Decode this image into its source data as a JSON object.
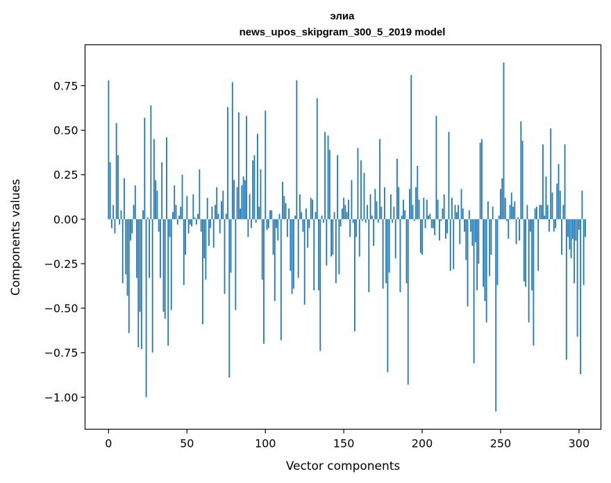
{
  "chart_data": {
    "type": "bar",
    "title": "элиа",
    "subtitle": "news_upos_skipgram_300_5_2019 model",
    "xlabel": "Vector components",
    "ylabel": "Components values",
    "xlim": [
      -15,
      314
    ],
    "ylim": [
      -1.18,
      0.98
    ],
    "xticks": [
      0,
      50,
      100,
      150,
      200,
      250,
      300
    ],
    "xtick_labels": [
      "0",
      "50",
      "100",
      "150",
      "200",
      "250",
      "300"
    ],
    "yticks": [
      -1.0,
      -0.75,
      -0.5,
      -0.25,
      0.0,
      0.25,
      0.5,
      0.75
    ],
    "ytick_labels": [
      "−1.00",
      "−0.75",
      "−0.50",
      "−0.25",
      "0.00",
      "0.25",
      "0.50",
      "0.75"
    ],
    "bar_color": "#1f77b4",
    "grid": false,
    "values": [
      0.78,
      0.32,
      -0.05,
      0.08,
      -0.08,
      0.54,
      0.36,
      -0.03,
      0.05,
      -0.36,
      0.23,
      -0.31,
      -0.43,
      -0.64,
      -0.12,
      -0.08,
      0.08,
      0.19,
      -0.33,
      -0.72,
      -0.52,
      -0.73,
      0.05,
      0.57,
      -1.0,
      0.01,
      -0.33,
      0.64,
      -0.75,
      0.45,
      0.22,
      0.16,
      -0.07,
      -0.33,
      0.32,
      -0.52,
      -0.56,
      0.46,
      -0.71,
      -0.1,
      -0.51,
      0.04,
      0.19,
      0.08,
      -0.03,
      0.02,
      0.07,
      0.25,
      -0.37,
      -0.2,
      0.13,
      -0.08,
      -0.03,
      -0.04,
      0.14,
      0.01,
      -0.03,
      0.03,
      0.28,
      -0.07,
      -0.59,
      -0.22,
      -0.34,
      0.12,
      -0.15,
      -0.05,
      0.07,
      -0.16,
      0.08,
      0.18,
      0.03,
      -0.08,
      0.1,
      0.16,
      -0.42,
      0.03,
      0.63,
      -0.89,
      -0.3,
      0.77,
      0.22,
      -0.51,
      0.18,
      0.6,
      0.06,
      0.19,
      0.24,
      0.22,
      0.58,
      -0.1,
      0.14,
      -0.05,
      0.33,
      0.36,
      -0.02,
      0.48,
      0.07,
      0.28,
      -0.34,
      -0.7,
      0.61,
      -0.06,
      -0.05,
      0.05,
      0.05,
      -0.2,
      -0.46,
      -0.05,
      -0.12,
      0.03,
      -0.68,
      0.21,
      0.13,
      0.09,
      -0.1,
      0.06,
      -0.29,
      -0.42,
      -0.39,
      0.02,
      0.78,
      -0.33,
      0.14,
      0.04,
      -0.07,
      -0.48,
      0.06,
      -0.16,
      -0.05,
      0.12,
      0.11,
      -0.4,
      0.04,
      0.68,
      -0.4,
      -0.74,
      0.02,
      -0.02,
      0.49,
      -0.26,
      0.47,
      0.39,
      -0.21,
      -0.2,
      0.04,
      -0.36,
      0.36,
      -0.31,
      -0.04,
      0.06,
      0.12,
      0.08,
      0.04,
      0.11,
      -0.1,
      0.22,
      -0.02,
      -0.63,
      -0.1,
      0.4,
      -0.21,
      0.33,
      -0.01,
      0.26,
      -0.02,
      0.08,
      -0.41,
      0.14,
      0.02,
      -0.15,
      0.17,
      0.1,
      -0.02,
      0.45,
      0.07,
      -0.39,
      0.18,
      -0.36,
      -0.86,
      -0.3,
      0.14,
      -0.02,
      0.07,
      -0.22,
      0.34,
      0.18,
      -0.41,
      0.02,
      0.11,
      0.05,
      -0.36,
      -0.93,
      0.17,
      0.81,
      0.08,
      -0.01,
      0.18,
      0.3,
      0.11,
      -0.19,
      -0.2,
      0.12,
      -0.05,
      0.11,
      0.02,
      0.03,
      -0.05,
      -0.05,
      -0.09,
      0.58,
      0.11,
      -0.12,
      -0.01,
      0.06,
      0.14,
      -0.11,
      -0.08,
      0.49,
      -0.29,
      0.12,
      -0.28,
      0.08,
      0.04,
      0.08,
      -0.14,
      0.17,
      0.06,
      -0.07,
      -0.23,
      -0.49,
      0.05,
      -0.07,
      -0.15,
      -0.81,
      -0.13,
      -0.4,
      -0.25,
      0.43,
      0.45,
      -0.38,
      -0.46,
      -0.58,
      0.1,
      -0.32,
      -0.2,
      0.07,
      0.0,
      -1.08,
      -0.37,
      0.02,
      0.17,
      0.23,
      0.88,
      0.12,
      -0.01,
      -0.11,
      0.08,
      0.15,
      0.07,
      0.1,
      -0.14,
      0.01,
      -0.12,
      0.55,
      0.44,
      -0.35,
      -0.38,
      0.08,
      -0.58,
      -0.07,
      -0.4,
      -0.71,
      0.06,
      0.07,
      -0.29,
      0.08,
      0.08,
      0.42,
      0.02,
      0.24,
      0.08,
      -0.07,
      0.51,
      0.15,
      -0.07,
      -0.05,
      0.2,
      0.31,
      0.16,
      -0.2,
      0.08,
      0.42,
      -0.79,
      -0.1,
      -0.17,
      -0.22,
      -0.11,
      -0.36,
      -0.12,
      -0.66,
      -0.06,
      -0.87,
      0.16,
      -0.37,
      -0.1
    ]
  }
}
